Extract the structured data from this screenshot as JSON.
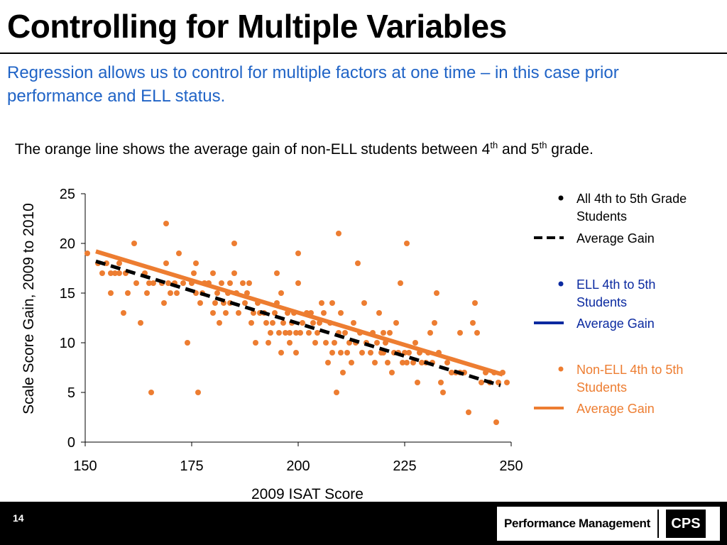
{
  "slide": {
    "title": "Controlling for Multiple Variables",
    "subtitle": "Regression allows us to control for multiple factors at one time – in this case prior performance and ELL status.",
    "caption": {
      "text_1": "The orange line shows the average gain of non-ELL students between 4",
      "sup_1": "th",
      "text_2": " and 5",
      "sup_2": "th",
      "text_3": " grade."
    },
    "page_number": "14",
    "logo_text": "Performance Management",
    "logo_mark": "CPS"
  },
  "colors": {
    "subtitle": "#1f63c6",
    "orange": "#ed7d31",
    "navy": "#0b2aa0",
    "black": "#000000",
    "footer": "#000000"
  },
  "chart_data": {
    "type": "scatter",
    "xlabel": "2009 ISAT Score",
    "ylabel": "Scale Score Gain, 2009 to 2010",
    "xlim": [
      150,
      250
    ],
    "ylim": [
      0,
      25
    ],
    "x_ticks": [
      "150",
      "175",
      "200",
      "225",
      "250"
    ],
    "y_ticks": [
      "0",
      "5",
      "10",
      "15",
      "20",
      "25"
    ],
    "grid": false,
    "legend_position": "right",
    "legend": [
      {
        "label": "All 4th to 5th Grade Students",
        "kind": "marker",
        "color": "#000000"
      },
      {
        "label": "Average Gain",
        "kind": "dashed-line",
        "color": "#000000"
      },
      {
        "label": "ELL 4th to 5th Students",
        "kind": "marker",
        "color": "#0b2aa0"
      },
      {
        "label": "Average Gain",
        "kind": "line",
        "color": "#0b2aa0"
      },
      {
        "label": "Non-ELL 4th to 5th Students",
        "kind": "marker",
        "color": "#ed7d31"
      },
      {
        "label": "Average Gain",
        "kind": "line",
        "color": "#ed7d31"
      }
    ],
    "lines": [
      {
        "name": "Average Gain (All)",
        "color": "#000000",
        "dashed": true,
        "x": [
          152.5,
          247.5
        ],
        "y": [
          18.2,
          5.7
        ]
      },
      {
        "name": "Average Gain (Non-ELL)",
        "color": "#ed7d31",
        "dashed": false,
        "x": [
          152.5,
          248.0
        ],
        "y": [
          19.2,
          6.8
        ]
      }
    ],
    "series": [
      {
        "name": "Non-ELL 4th to 5th Students",
        "color": "#ed7d31",
        "points": [
          [
            150.5,
            19
          ],
          [
            153,
            18
          ],
          [
            154,
            17
          ],
          [
            155,
            18
          ],
          [
            156,
            17
          ],
          [
            156,
            15
          ],
          [
            157,
            17
          ],
          [
            158,
            18
          ],
          [
            158,
            17
          ],
          [
            159,
            13
          ],
          [
            159.5,
            17
          ],
          [
            160,
            15
          ],
          [
            161.5,
            20
          ],
          [
            162,
            16
          ],
          [
            163,
            12
          ],
          [
            164,
            17
          ],
          [
            164.5,
            15
          ],
          [
            165,
            16
          ],
          [
            165.5,
            5
          ],
          [
            166,
            16
          ],
          [
            168,
            16
          ],
          [
            168.5,
            14
          ],
          [
            169,
            22
          ],
          [
            169,
            18
          ],
          [
            169.5,
            16
          ],
          [
            170,
            15
          ],
          [
            171,
            16
          ],
          [
            171.5,
            15
          ],
          [
            172,
            19
          ],
          [
            173,
            16
          ],
          [
            174,
            10
          ],
          [
            175,
            16
          ],
          [
            175.5,
            17
          ],
          [
            176,
            18
          ],
          [
            176,
            15
          ],
          [
            176.5,
            5
          ],
          [
            177,
            14
          ],
          [
            177.5,
            15
          ],
          [
            178,
            16
          ],
          [
            179,
            16
          ],
          [
            180,
            17
          ],
          [
            180,
            13
          ],
          [
            180.5,
            14
          ],
          [
            181,
            15
          ],
          [
            181.5,
            12
          ],
          [
            182,
            16
          ],
          [
            182.5,
            14
          ],
          [
            183,
            13
          ],
          [
            183.5,
            15
          ],
          [
            184,
            16
          ],
          [
            184,
            14
          ],
          [
            185,
            17
          ],
          [
            185,
            20
          ],
          [
            185.5,
            15
          ],
          [
            186,
            13
          ],
          [
            187,
            16
          ],
          [
            187.5,
            14
          ],
          [
            188,
            15
          ],
          [
            188.5,
            16
          ],
          [
            189,
            12
          ],
          [
            189.5,
            13
          ],
          [
            190,
            10
          ],
          [
            190.5,
            14
          ],
          [
            191,
            13
          ],
          [
            192,
            13
          ],
          [
            192.5,
            12
          ],
          [
            193,
            10
          ],
          [
            193.5,
            11
          ],
          [
            194,
            12
          ],
          [
            194.5,
            13
          ],
          [
            195,
            17
          ],
          [
            195,
            14
          ],
          [
            195.5,
            11
          ],
          [
            196,
            15
          ],
          [
            196,
            9
          ],
          [
            196.5,
            12
          ],
          [
            197,
            11
          ],
          [
            197.5,
            13
          ],
          [
            198,
            10
          ],
          [
            198,
            11
          ],
          [
            198.5,
            12
          ],
          [
            199,
            13
          ],
          [
            199.5,
            11
          ],
          [
            199.5,
            9
          ],
          [
            200,
            19
          ],
          [
            200,
            16
          ],
          [
            200.5,
            11
          ],
          [
            201,
            12
          ],
          [
            202,
            13
          ],
          [
            202.5,
            11
          ],
          [
            203,
            13
          ],
          [
            203.5,
            12
          ],
          [
            204,
            10
          ],
          [
            204.5,
            11
          ],
          [
            205,
            12
          ],
          [
            205.5,
            14
          ],
          [
            206,
            13
          ],
          [
            206.5,
            10
          ],
          [
            207,
            8
          ],
          [
            207.5,
            12
          ],
          [
            208,
            14
          ],
          [
            208,
            9
          ],
          [
            208.5,
            10
          ],
          [
            209,
            5
          ],
          [
            209.5,
            21
          ],
          [
            209.5,
            11
          ],
          [
            210,
            13
          ],
          [
            210,
            9
          ],
          [
            210.5,
            7
          ],
          [
            211,
            11
          ],
          [
            211.5,
            9
          ],
          [
            212,
            10
          ],
          [
            212.5,
            8
          ],
          [
            213,
            12
          ],
          [
            213.5,
            10
          ],
          [
            214,
            18
          ],
          [
            214.5,
            11
          ],
          [
            215,
            9
          ],
          [
            215.5,
            14
          ],
          [
            216,
            10
          ],
          [
            217,
            9
          ],
          [
            217.5,
            11
          ],
          [
            218,
            8
          ],
          [
            218.5,
            10
          ],
          [
            219,
            13
          ],
          [
            219.5,
            9
          ],
          [
            220,
            11
          ],
          [
            220,
            9
          ],
          [
            220.5,
            10
          ],
          [
            221,
            8
          ],
          [
            221.5,
            11
          ],
          [
            222,
            7
          ],
          [
            222.5,
            9
          ],
          [
            223,
            12
          ],
          [
            223.5,
            9
          ],
          [
            224,
            16
          ],
          [
            224.5,
            8
          ],
          [
            225,
            9
          ],
          [
            225.5,
            20
          ],
          [
            225.5,
            8
          ],
          [
            226,
            9
          ],
          [
            227,
            8
          ],
          [
            227.5,
            10
          ],
          [
            228,
            6
          ],
          [
            228.5,
            9
          ],
          [
            229,
            8
          ],
          [
            230,
            8
          ],
          [
            230.5,
            9
          ],
          [
            231,
            11
          ],
          [
            231.5,
            8
          ],
          [
            232,
            12
          ],
          [
            232.5,
            15
          ],
          [
            233,
            9
          ],
          [
            233.5,
            6
          ],
          [
            234,
            5
          ],
          [
            235,
            8
          ],
          [
            236,
            7
          ],
          [
            237,
            7
          ],
          [
            238,
            11
          ],
          [
            238,
            7
          ],
          [
            239,
            7
          ],
          [
            240,
            3
          ],
          [
            241,
            12
          ],
          [
            241.5,
            14
          ],
          [
            242,
            11
          ],
          [
            243,
            6
          ],
          [
            244,
            7
          ],
          [
            245,
            6
          ],
          [
            246,
            7
          ],
          [
            246.5,
            2
          ],
          [
            247,
            6
          ],
          [
            248,
            7
          ],
          [
            249,
            6
          ]
        ]
      }
    ]
  }
}
